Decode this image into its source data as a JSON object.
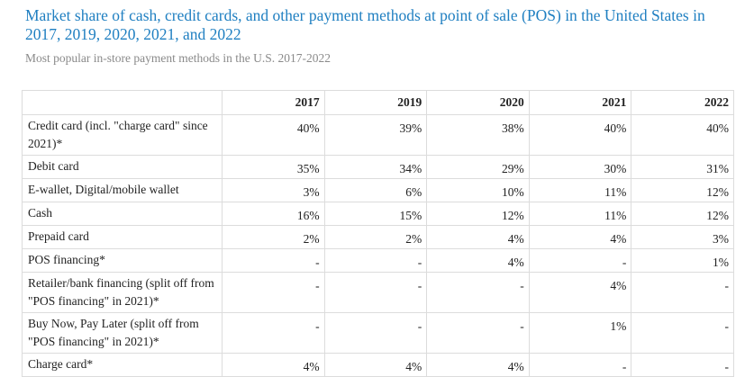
{
  "chart_data": {
    "type": "table",
    "title": "Market share of cash, credit cards, and other payment methods at point of sale (POS) in the United States in 2017, 2019, 2020, 2021, and 2022",
    "subtitle": "Most popular in-store payment methods in the U.S. 2017-2022",
    "columns": [
      "",
      "2017",
      "2019",
      "2020",
      "2021",
      "2022"
    ],
    "rows": [
      {
        "label": "Credit card (incl. \"charge card\" since 2021)*",
        "values": [
          "40%",
          "39%",
          "38%",
          "40%",
          "40%"
        ]
      },
      {
        "label": "Debit card",
        "values": [
          "35%",
          "34%",
          "29%",
          "30%",
          "31%"
        ]
      },
      {
        "label": "E-wallet, Digital/mobile wallet",
        "values": [
          "3%",
          "6%",
          "10%",
          "11%",
          "12%"
        ]
      },
      {
        "label": "Cash",
        "values": [
          "16%",
          "15%",
          "12%",
          "11%",
          "12%"
        ]
      },
      {
        "label": "Prepaid card",
        "values": [
          "2%",
          "2%",
          "4%",
          "4%",
          "3%"
        ]
      },
      {
        "label": "POS financing*",
        "values": [
          "-",
          "-",
          "4%",
          "-",
          "1%"
        ]
      },
      {
        "label": "Retailer/bank financing (split off from \"POS financing\" in 2021)*",
        "values": [
          "-",
          "-",
          "-",
          "4%",
          "-"
        ]
      },
      {
        "label": "Buy Now, Pay Later (split off from \"POS financing\" in 2021)*",
        "values": [
          "-",
          "-",
          "-",
          "1%",
          "-"
        ]
      },
      {
        "label": "Charge card*",
        "values": [
          "4%",
          "4%",
          "4%",
          "-",
          "-"
        ]
      }
    ]
  }
}
